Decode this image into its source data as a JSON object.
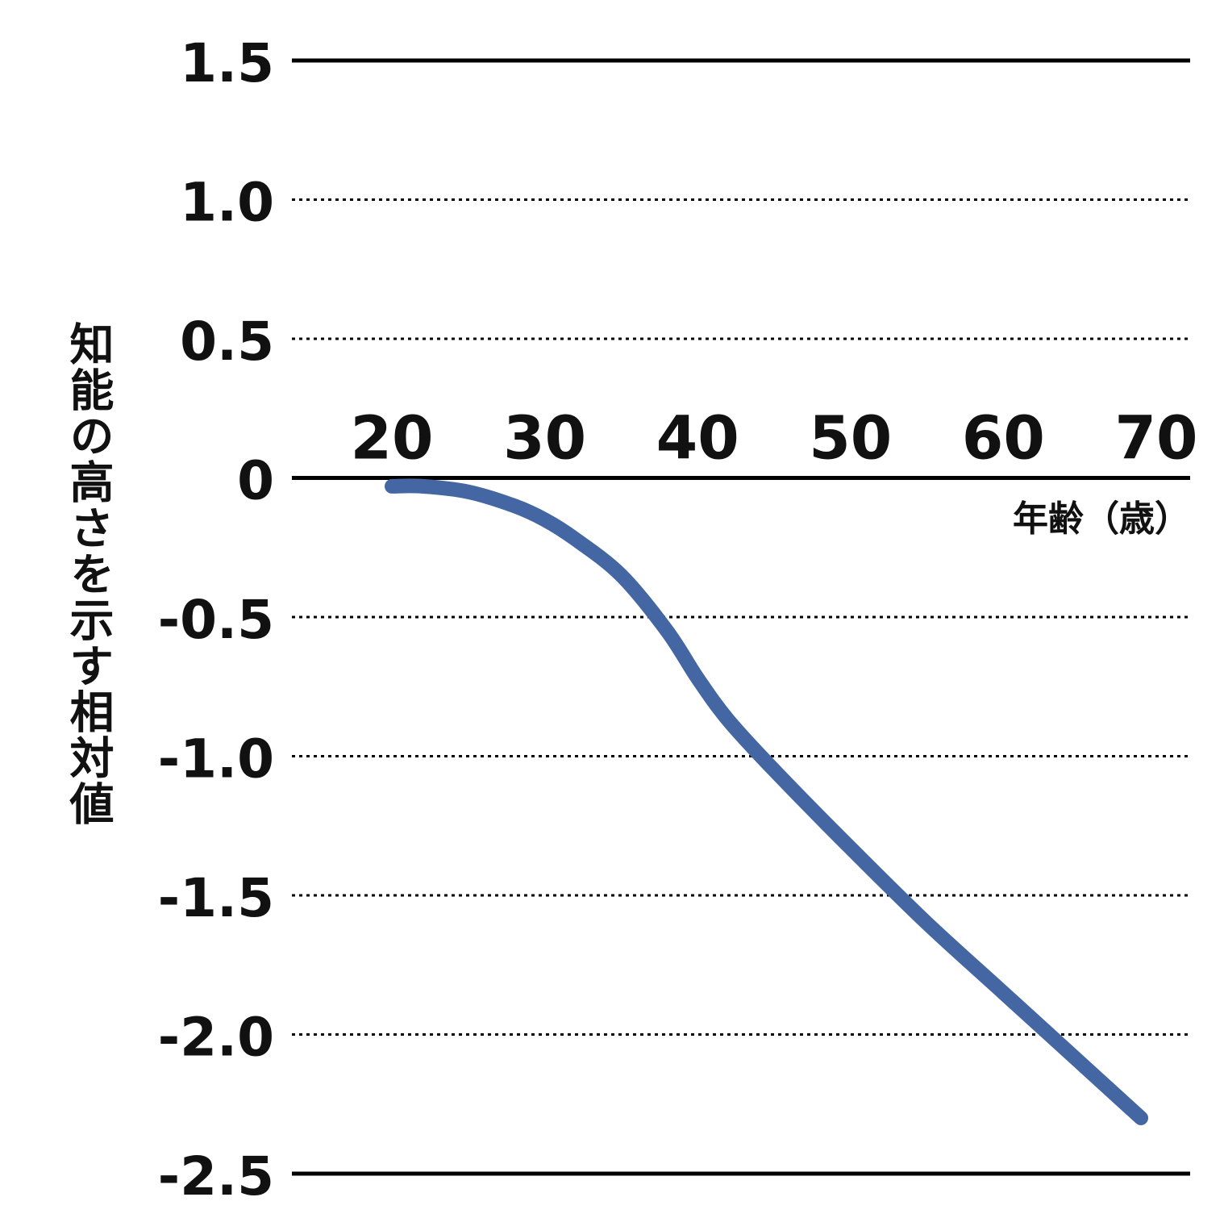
{
  "chart_data": {
    "type": "line",
    "title": "",
    "xlabel": "年齢（歳）",
    "ylabel": "知能の高さを示す相対値",
    "x_ticks": [
      "20",
      "30",
      "40",
      "50",
      "60",
      "70"
    ],
    "y_ticks": [
      "1.5",
      "1.0",
      "0.5",
      "0",
      "-0.5",
      "-1.0",
      "-1.5",
      "-2.0",
      "-2.5"
    ],
    "xlim": [
      20,
      70
    ],
    "ylim": [
      -2.5,
      1.5
    ],
    "grid": "horizontal dotted",
    "legend": "none",
    "series": [
      {
        "x": [
          20,
          22,
          25,
          28,
          30,
          32,
          35,
          38,
          40,
          42,
          45,
          50,
          55,
          60,
          65,
          69
        ],
        "y": [
          -0.03,
          -0.03,
          -0.05,
          -0.1,
          -0.15,
          -0.22,
          -0.35,
          -0.55,
          -0.72,
          -0.87,
          -1.05,
          -1.33,
          -1.6,
          -1.85,
          -2.1,
          -2.3
        ]
      }
    ],
    "line_color": "#4466a3",
    "axis_color": "#000000"
  }
}
